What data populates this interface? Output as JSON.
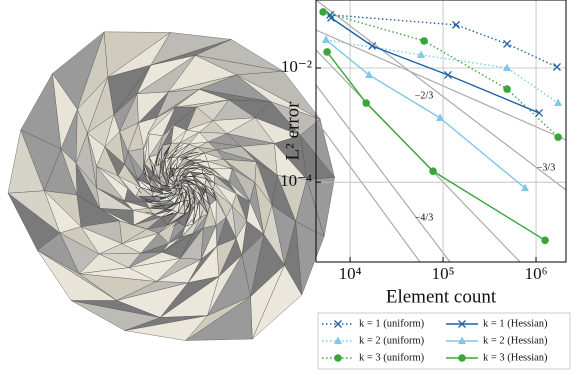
{
  "chart_data": {
    "type": "line",
    "x_label": "Element count",
    "y_label": "L² error",
    "xlog": true,
    "ylog": true,
    "grid": true,
    "xlim": [
      4300,
      2100000
    ],
    "ylim": [
      4e-06,
      0.155
    ],
    "xticks": [
      {
        "value": 10000,
        "label": "10⁴"
      },
      {
        "value": 100000,
        "label": "10⁵"
      },
      {
        "value": 1000000,
        "label": "10⁶"
      }
    ],
    "yticks": [
      {
        "value": 0.01,
        "label": "10⁻²"
      },
      {
        "value": 0.0001,
        "label": "10⁻⁴"
      }
    ],
    "annotations": [
      "−2/3",
      "−3/3",
      "−4/3"
    ],
    "series": [
      {
        "name": "k = 1 (uniform)",
        "color": "#1f62a8",
        "linestyle": "dotted",
        "marker": "x",
        "x": [
          6100,
          138000,
          488000,
          1680000
        ],
        "values": [
          0.0851,
          0.0568,
          0.0264,
          0.0104
        ]
      },
      {
        "name": "k = 2 (uniform)",
        "color": "#7fc8e8",
        "linestyle": "dotted",
        "marker": "^",
        "x": [
          5520,
          58000,
          488000,
          1730000
        ],
        "values": [
          0.031,
          0.0169,
          0.01,
          0.00243
        ]
      },
      {
        "name": "k = 3 (uniform)",
        "color": "#3aa63a",
        "linestyle": "dotted",
        "marker": "o",
        "x": [
          5130,
          62500,
          488000,
          1730000
        ],
        "values": [
          0.0959,
          0.0298,
          0.00428,
          0.000615
        ]
      },
      {
        "name": "k = 1 (Hessian)",
        "color": "#1f62a8",
        "linestyle": "solid",
        "marker": "x",
        "x": [
          6250,
          17300,
          113000,
          1080000
        ],
        "values": [
          0.0754,
          0.0243,
          0.00754,
          0.00163
        ]
      },
      {
        "name": "k = 2 (Hessian)",
        "color": "#7fc8e8",
        "linestyle": "solid",
        "marker": "^",
        "x": [
          5520,
          16000,
          92900,
          762000
        ],
        "values": [
          0.031,
          0.00754,
          0.00133,
          7.85e-05
        ]
      },
      {
        "name": "k = 3 (Hessian)",
        "color": "#3aa63a",
        "linestyle": "solid",
        "marker": "o",
        "x": [
          5660,
          14900,
          78000,
          1250000
        ],
        "values": [
          0.0191,
          0.00243,
          0.000156,
          9.6e-06
        ]
      }
    ]
  }
}
